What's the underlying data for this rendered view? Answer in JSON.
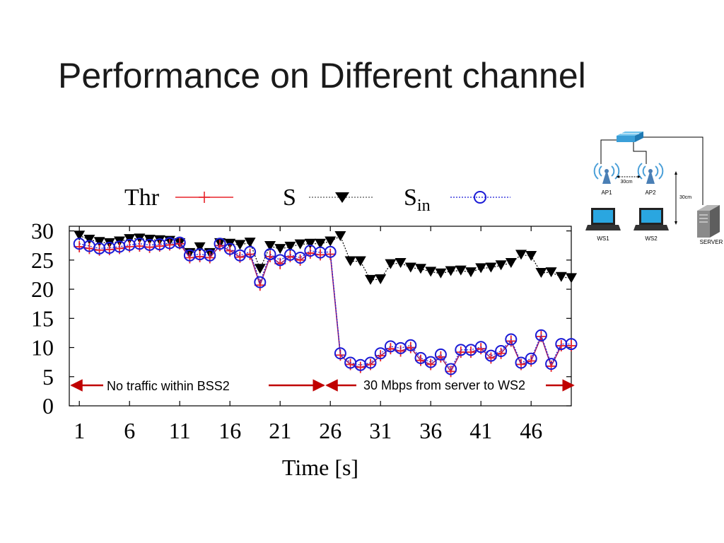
{
  "slide": {
    "title": "Performance on Different channel"
  },
  "chart_data": {
    "type": "line",
    "xlabel": "Time [s]",
    "ylabel": "",
    "xlim": [
      0,
      50
    ],
    "ylim": [
      0,
      30.8
    ],
    "xticks": [
      1,
      6,
      11,
      16,
      21,
      26,
      31,
      36,
      41,
      46
    ],
    "yticks": [
      0,
      5,
      10,
      15,
      20,
      25,
      30
    ],
    "x": [
      1,
      2,
      3,
      4,
      5,
      6,
      7,
      8,
      9,
      10,
      11,
      12,
      13,
      14,
      15,
      16,
      17,
      18,
      19,
      20,
      21,
      22,
      23,
      24,
      25,
      26,
      27,
      28,
      29,
      30,
      31,
      32,
      33,
      34,
      35,
      36,
      37,
      38,
      39,
      40,
      41,
      42,
      43,
      44,
      45,
      46,
      47,
      48,
      49,
      50
    ],
    "legend": [
      {
        "key": "thr",
        "label": "Thr",
        "subscript": ""
      },
      {
        "key": "s",
        "label": "S",
        "subscript": ""
      },
      {
        "key": "sin",
        "label": "S",
        "subscript": "in"
      }
    ],
    "series": [
      {
        "key": "s",
        "name": "S",
        "color": "#000000",
        "marker": "triangle-down",
        "line": "dotted",
        "values": [
          29.2,
          28.5,
          28.1,
          27.9,
          28.2,
          28.6,
          28.7,
          28.5,
          28.4,
          28.3,
          27.9,
          26.2,
          27.2,
          26.2,
          27.9,
          27.8,
          27.6,
          28.0,
          23.5,
          27.4,
          26.9,
          27.3,
          27.7,
          27.8,
          27.8,
          28.2,
          29.1,
          24.8,
          24.8,
          21.6,
          21.7,
          24.3,
          24.5,
          23.7,
          23.5,
          23.0,
          22.7,
          23.1,
          23.2,
          22.9,
          23.6,
          23.7,
          24.1,
          24.5,
          25.9,
          25.7,
          22.8,
          22.9,
          22.1,
          21.9
        ]
      },
      {
        "key": "thr",
        "name": "Thr",
        "color": "#e8232a",
        "marker": "plus",
        "line": "solid",
        "values": [
          27.3,
          27.0,
          26.7,
          26.8,
          27.0,
          27.3,
          27.4,
          27.2,
          27.4,
          27.6,
          27.8,
          25.4,
          25.6,
          25.4,
          27.5,
          26.6,
          25.5,
          26.0,
          20.7,
          25.6,
          24.4,
          25.6,
          25.0,
          26.2,
          25.9,
          26.0,
          8.7,
          7.1,
          6.6,
          7.1,
          8.6,
          9.8,
          9.4,
          10.0,
          7.8,
          7.1,
          8.4,
          5.9,
          9.2,
          9.2,
          9.8,
          8.2,
          9.0,
          11.1,
          7.1,
          7.7,
          11.9,
          6.8,
          10.3,
          10.3
        ]
      },
      {
        "key": "sin",
        "name": "S_in",
        "color": "#1a1ad6",
        "marker": "circle",
        "line": "dotted",
        "values": [
          27.8,
          27.4,
          27.0,
          27.1,
          27.3,
          27.6,
          27.8,
          27.6,
          27.7,
          27.9,
          28.0,
          25.8,
          26.0,
          25.8,
          27.8,
          26.9,
          25.8,
          26.4,
          21.2,
          26.0,
          25.0,
          25.9,
          25.4,
          26.6,
          26.3,
          26.4,
          9.0,
          7.4,
          7.0,
          7.4,
          9.0,
          10.2,
          9.9,
          10.4,
          8.2,
          7.5,
          8.8,
          6.3,
          9.6,
          9.6,
          10.1,
          8.6,
          9.4,
          11.4,
          7.4,
          8.1,
          12.1,
          7.2,
          10.6,
          10.6
        ]
      }
    ],
    "annotations": [
      {
        "key": "no_traffic",
        "text": "No traffic within BSS2"
      },
      {
        "key": "traffic",
        "text": "30 Mbps from server to WS2"
      }
    ],
    "arrow_color": "#c00000",
    "grid": false
  },
  "topology": {
    "ap1_label": "AP1",
    "ap2_label": "AP2",
    "ws1_label": "WS1",
    "ws2_label": "WS2",
    "server_label": "SERVER",
    "dist_horizontal": "30cm",
    "dist_vertical": "30cm",
    "icons": [
      "network-switch-icon",
      "wireless-ap-icon",
      "laptop-icon",
      "server-tower-icon"
    ]
  }
}
